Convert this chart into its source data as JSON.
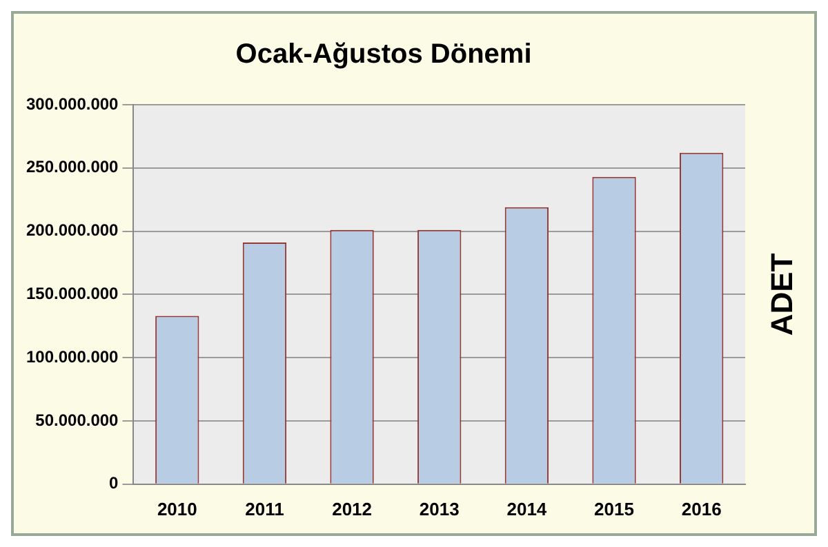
{
  "chart_data": {
    "type": "bar",
    "title": "Ocak-Ağustos Dönemi",
    "ylabel": "ADET",
    "categories": [
      "2010",
      "2011",
      "2012",
      "2013",
      "2014",
      "2015",
      "2016"
    ],
    "values": [
      133000000,
      191000000,
      201000000,
      201000000,
      219000000,
      243000000,
      262000000
    ],
    "color": "#b8cce4",
    "ylim": [
      0,
      300000000
    ],
    "yticks": [
      {
        "value": 0,
        "label": "0"
      },
      {
        "value": 50000000,
        "label": "50.000.000"
      },
      {
        "value": 100000000,
        "label": "100.000.000"
      },
      {
        "value": 150000000,
        "label": "150.000.000"
      },
      {
        "value": 200000000,
        "label": "200.000.000"
      },
      {
        "value": 250000000,
        "label": "250.000.000"
      },
      {
        "value": 300000000,
        "label": "300.000.000"
      }
    ],
    "grid": "y",
    "legend": false
  }
}
